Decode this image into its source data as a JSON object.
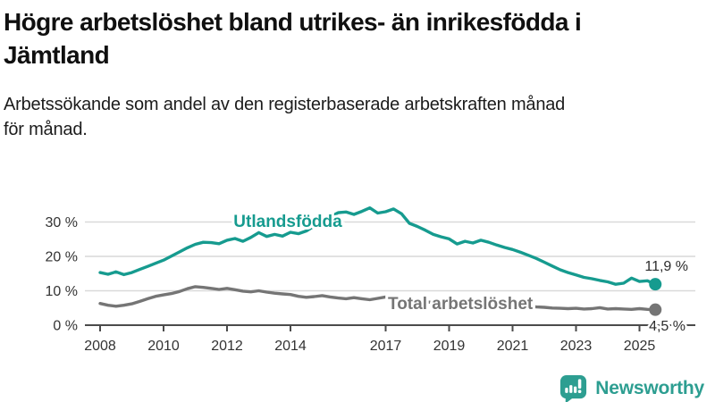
{
  "header": {
    "title_lines": [
      "Högre arbetslöshet bland utrikes- än inrikesfödda i",
      "Jämtland"
    ],
    "subtitle_lines": [
      "Arbetssökande som andel av den registerbaserade arbetskraften månad",
      "för månad."
    ]
  },
  "chart_data": {
    "type": "line",
    "unit": "percent",
    "x_start": 2008,
    "x_step_years": 0.25,
    "x_tick_years": [
      2008,
      2010,
      2012,
      2014,
      2017,
      2019,
      2021,
      2023,
      2025
    ],
    "y_ticks": [
      0,
      10,
      20,
      30
    ],
    "y_tick_suffix": " %",
    "ylim": [
      0,
      36
    ],
    "grid": true,
    "colors": {
      "grid": "#d9d9d9",
      "axis": "#4b4b4b",
      "tick_label": "#333333",
      "annotation": "#2d2d2d"
    },
    "series": [
      {
        "name": "Utlandsfödda",
        "color": "#169b8f",
        "end_label": "11,9 %",
        "values": [
          15.3,
          14.8,
          15.5,
          14.7,
          15.3,
          16.2,
          17.1,
          18.0,
          18.9,
          20.1,
          21.3,
          22.5,
          23.5,
          24.1,
          24.0,
          23.7,
          24.7,
          25.2,
          24.4,
          25.5,
          26.9,
          25.8,
          26.4,
          25.9,
          27.0,
          26.6,
          27.4,
          28.8,
          30.2,
          31.5,
          32.7,
          32.9,
          32.2,
          33.1,
          34.1,
          32.6,
          33.0,
          33.8,
          32.4,
          29.6,
          28.7,
          27.6,
          26.4,
          25.7,
          25.1,
          23.6,
          24.4,
          23.9,
          24.7,
          24.1,
          23.3,
          22.6,
          22.0,
          21.2,
          20.3,
          19.4,
          18.3,
          17.2,
          16.1,
          15.3,
          14.6,
          13.9,
          13.5,
          13.0,
          12.6,
          11.9,
          12.2,
          13.7,
          12.7,
          12.9,
          11.9
        ]
      },
      {
        "name": "Total arbetslöshet",
        "color": "#757575",
        "end_label": "4,5 %",
        "values": [
          6.3,
          5.8,
          5.5,
          5.8,
          6.2,
          6.9,
          7.7,
          8.4,
          8.8,
          9.2,
          9.8,
          10.6,
          11.2,
          11.0,
          10.7,
          10.4,
          10.7,
          10.3,
          9.9,
          9.7,
          10.0,
          9.6,
          9.3,
          9.1,
          8.9,
          8.4,
          8.1,
          8.3,
          8.6,
          8.2,
          7.9,
          7.7,
          8.0,
          7.7,
          7.4,
          7.8,
          8.2,
          7.9,
          7.6,
          7.3,
          7.0,
          6.8,
          6.6,
          6.5,
          6.4,
          6.3,
          6.2,
          6.1,
          6.3,
          6.5,
          6.3,
          6.1,
          5.9,
          5.7,
          5.5,
          5.3,
          5.2,
          5.0,
          4.9,
          4.8,
          4.9,
          4.7,
          4.8,
          5.1,
          4.7,
          4.8,
          4.7,
          4.6,
          4.8,
          4.6,
          4.5
        ]
      }
    ]
  },
  "footer": {
    "brand": "Newsworthy",
    "brand_color": "#2d9e91",
    "logo_icon": "bar-chart-speech-bubble-icon"
  }
}
